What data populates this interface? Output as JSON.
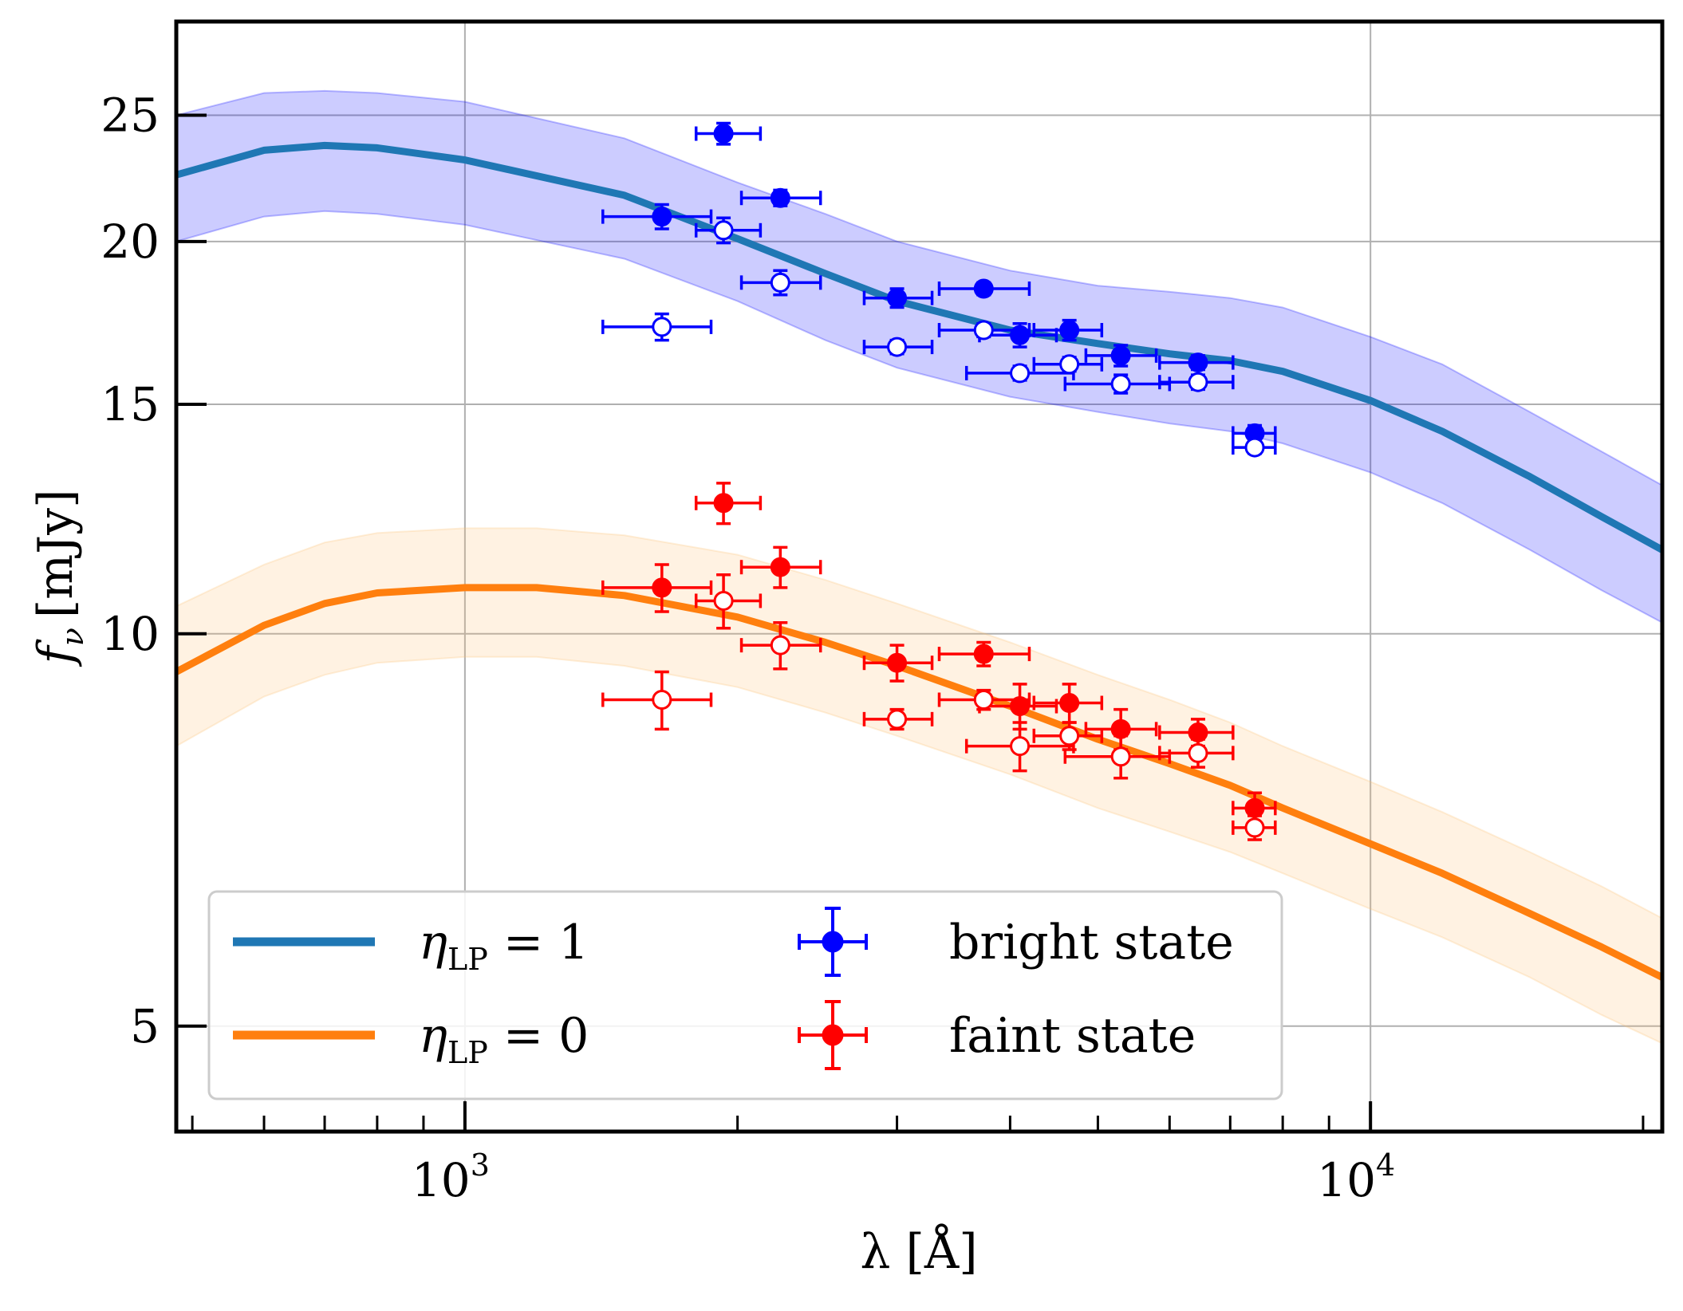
{
  "chart_data": {
    "type": "scatter",
    "x_scale": "log",
    "y_scale": "log",
    "xlim": [
      480,
      21000
    ],
    "ylim": [
      4.15,
      29.5
    ],
    "xlabel": "λ [Å]",
    "ylabel_main": "f",
    "ylabel_sub": "ν",
    "ylabel_unit": "[mJy]",
    "x_ticks": [
      {
        "value": 1000,
        "base": "10",
        "exp": "3"
      },
      {
        "value": 10000,
        "base": "10",
        "exp": "4"
      }
    ],
    "y_ticks": [
      {
        "value": 5,
        "label": "5"
      },
      {
        "value": 10,
        "label": "10"
      },
      {
        "value": 15,
        "label": "15"
      },
      {
        "value": 20,
        "label": "20"
      },
      {
        "value": 25,
        "label": "25"
      }
    ],
    "grid": true,
    "models": [
      {
        "name_main": "η",
        "name_sub": "LP",
        "name_rest": " = 1",
        "color": "#1f77b4",
        "band_color": "#0000ff",
        "x": [
          480,
          600,
          700,
          800,
          1000,
          1500,
          2000,
          2500,
          3000,
          4000,
          5000,
          6000,
          7000,
          8000,
          10000,
          12000,
          15000,
          18000,
          21000
        ],
        "y": [
          22.5,
          23.5,
          23.7,
          23.6,
          23.1,
          21.7,
          20.1,
          18.9,
          18.0,
          17.1,
          16.7,
          16.4,
          16.2,
          15.9,
          15.1,
          14.3,
          13.2,
          12.3,
          11.6
        ],
        "lower": [
          20.0,
          20.9,
          21.1,
          21.0,
          20.6,
          19.4,
          18.0,
          16.8,
          16.0,
          15.2,
          14.8,
          14.5,
          14.3,
          14.0,
          13.3,
          12.6,
          11.6,
          10.8,
          10.2
        ],
        "upper": [
          25.0,
          26.0,
          26.1,
          26.0,
          25.6,
          24.0,
          22.2,
          21.0,
          20.0,
          19.0,
          18.5,
          18.3,
          18.1,
          17.8,
          16.9,
          16.1,
          14.8,
          13.8,
          13.0
        ]
      },
      {
        "name_main": "η",
        "name_sub": "LP",
        "name_rest": " = 0",
        "color": "#ff7f0e",
        "band_color": "#fdbf6f",
        "x": [
          480,
          600,
          700,
          800,
          1000,
          1200,
          1500,
          2000,
          2500,
          3000,
          4000,
          5000,
          6000,
          7000,
          8000,
          10000,
          12000,
          15000,
          18000,
          21000
        ],
        "y": [
          9.35,
          10.15,
          10.55,
          10.75,
          10.85,
          10.85,
          10.7,
          10.3,
          9.85,
          9.45,
          8.8,
          8.3,
          7.95,
          7.65,
          7.35,
          6.9,
          6.55,
          6.1,
          5.75,
          5.45
        ],
        "lower": [
          8.2,
          8.95,
          9.3,
          9.5,
          9.6,
          9.6,
          9.45,
          9.1,
          8.7,
          8.35,
          7.8,
          7.35,
          7.05,
          6.8,
          6.55,
          6.15,
          5.85,
          5.45,
          5.1,
          4.85
        ],
        "upper": [
          10.5,
          11.3,
          11.75,
          11.95,
          12.05,
          12.05,
          11.9,
          11.5,
          11.0,
          10.55,
          9.85,
          9.3,
          8.9,
          8.55,
          8.2,
          7.7,
          7.3,
          6.8,
          6.4,
          6.05
        ]
      }
    ],
    "series": [
      {
        "name": "bright state",
        "color": "#0000ff",
        "points": [
          {
            "x": 1650,
            "xerr_lo": 1420,
            "xerr_hi": 1870,
            "y": 20.9,
            "yerr": 0.45,
            "filled": true
          },
          {
            "x": 1930,
            "xerr_lo": 1800,
            "xerr_hi": 2120,
            "y": 24.2,
            "yerr": 0.45,
            "filled": true
          },
          {
            "x": 2230,
            "xerr_lo": 2020,
            "xerr_hi": 2470,
            "y": 21.6,
            "yerr": 0.3,
            "filled": true
          },
          {
            "x": 3000,
            "xerr_lo": 2760,
            "xerr_hi": 3280,
            "y": 18.1,
            "yerr": 0.3,
            "filled": true
          },
          {
            "x": 3740,
            "xerr_lo": 3340,
            "xerr_hi": 4200,
            "y": 18.4,
            "yerr": 0.2,
            "filled": true
          },
          {
            "x": 4100,
            "xerr_lo": 3700,
            "xerr_hi": 4500,
            "y": 16.95,
            "yerr": 0.35,
            "filled": true
          },
          {
            "x": 4650,
            "xerr_lo": 4250,
            "xerr_hi": 5050,
            "y": 17.1,
            "yerr": 0.3,
            "filled": true
          },
          {
            "x": 5300,
            "xerr_lo": 4850,
            "xerr_hi": 5800,
            "y": 16.35,
            "yerr": 0.3,
            "filled": true
          },
          {
            "x": 6450,
            "xerr_lo": 5850,
            "xerr_hi": 7050,
            "y": 16.15,
            "yerr": 0.2,
            "filled": true
          },
          {
            "x": 7450,
            "xerr_lo": 7050,
            "xerr_hi": 7850,
            "y": 14.25,
            "yerr": 0.2,
            "filled": true
          },
          {
            "x": 1650,
            "xerr_lo": 1420,
            "xerr_hi": 1870,
            "y": 17.2,
            "yerr": 0.4,
            "filled": false
          },
          {
            "x": 1930,
            "xerr_lo": 1800,
            "xerr_hi": 2120,
            "y": 20.4,
            "yerr": 0.45,
            "filled": false
          },
          {
            "x": 2230,
            "xerr_lo": 2020,
            "xerr_hi": 2470,
            "y": 18.6,
            "yerr": 0.4,
            "filled": false
          },
          {
            "x": 3000,
            "xerr_lo": 2760,
            "xerr_hi": 3280,
            "y": 16.6,
            "yerr": 0.2,
            "filled": false
          },
          {
            "x": 3740,
            "xerr_lo": 3340,
            "xerr_hi": 4200,
            "y": 17.1,
            "yerr": 0.2,
            "filled": false
          },
          {
            "x": 4100,
            "xerr_lo": 3580,
            "xerr_hi": 4700,
            "y": 15.85,
            "yerr": 0.2,
            "filled": false
          },
          {
            "x": 4650,
            "xerr_lo": 4250,
            "xerr_hi": 5050,
            "y": 16.1,
            "yerr": 0.2,
            "filled": false
          },
          {
            "x": 5300,
            "xerr_lo": 4600,
            "xerr_hi": 6000,
            "y": 15.55,
            "yerr": 0.25,
            "filled": false
          },
          {
            "x": 6450,
            "xerr_lo": 5850,
            "xerr_hi": 7050,
            "y": 15.6,
            "yerr": 0.2,
            "filled": false
          },
          {
            "x": 7450,
            "xerr_lo": 7050,
            "xerr_hi": 7850,
            "y": 13.9,
            "yerr": 0.15,
            "filled": false
          }
        ]
      },
      {
        "name": "faint state",
        "color": "#ff0000",
        "points": [
          {
            "x": 1650,
            "xerr_lo": 1420,
            "xerr_hi": 1870,
            "y": 10.85,
            "yerr": 0.45,
            "filled": true
          },
          {
            "x": 1930,
            "xerr_lo": 1800,
            "xerr_hi": 2120,
            "y": 12.6,
            "yerr": 0.45,
            "filled": true
          },
          {
            "x": 2230,
            "xerr_lo": 2020,
            "xerr_hi": 2470,
            "y": 11.25,
            "yerr": 0.4,
            "filled": true
          },
          {
            "x": 3000,
            "xerr_lo": 2760,
            "xerr_hi": 3280,
            "y": 9.5,
            "yerr": 0.3,
            "filled": true
          },
          {
            "x": 3740,
            "xerr_lo": 3340,
            "xerr_hi": 4200,
            "y": 9.65,
            "yerr": 0.2,
            "filled": true
          },
          {
            "x": 4100,
            "xerr_lo": 3700,
            "xerr_hi": 4500,
            "y": 8.8,
            "yerr": 0.35,
            "filled": true
          },
          {
            "x": 4650,
            "xerr_lo": 4250,
            "xerr_hi": 5050,
            "y": 8.85,
            "yerr": 0.3,
            "filled": true
          },
          {
            "x": 5300,
            "xerr_lo": 4850,
            "xerr_hi": 5800,
            "y": 8.45,
            "yerr": 0.3,
            "filled": true
          },
          {
            "x": 6450,
            "xerr_lo": 5850,
            "xerr_hi": 7050,
            "y": 8.4,
            "yerr": 0.2,
            "filled": true
          },
          {
            "x": 7450,
            "xerr_lo": 7050,
            "xerr_hi": 7850,
            "y": 7.35,
            "yerr": 0.2,
            "filled": true
          },
          {
            "x": 1650,
            "xerr_lo": 1420,
            "xerr_hi": 1870,
            "y": 8.9,
            "yerr": 0.45,
            "filled": false
          },
          {
            "x": 1930,
            "xerr_lo": 1800,
            "xerr_hi": 2120,
            "y": 10.6,
            "yerr": 0.5,
            "filled": false
          },
          {
            "x": 2230,
            "xerr_lo": 2020,
            "xerr_hi": 2470,
            "y": 9.8,
            "yerr": 0.4,
            "filled": false
          },
          {
            "x": 3000,
            "xerr_lo": 2760,
            "xerr_hi": 3280,
            "y": 8.6,
            "yerr": 0.15,
            "filled": false
          },
          {
            "x": 3740,
            "xerr_lo": 3340,
            "xerr_hi": 4200,
            "y": 8.9,
            "yerr": 0.15,
            "filled": false
          },
          {
            "x": 4100,
            "xerr_lo": 3580,
            "xerr_hi": 4700,
            "y": 8.2,
            "yerr": 0.35,
            "filled": false
          },
          {
            "x": 4650,
            "xerr_lo": 4250,
            "xerr_hi": 5050,
            "y": 8.35,
            "yerr": 0.2,
            "filled": false
          },
          {
            "x": 5300,
            "xerr_lo": 4600,
            "xerr_hi": 6000,
            "y": 8.05,
            "yerr": 0.3,
            "filled": false
          },
          {
            "x": 6450,
            "xerr_lo": 5850,
            "xerr_hi": 7050,
            "y": 8.1,
            "yerr": 0.2,
            "filled": false
          },
          {
            "x": 7450,
            "xerr_lo": 7050,
            "xerr_hi": 7850,
            "y": 7.1,
            "yerr": 0.15,
            "filled": false
          }
        ]
      }
    ],
    "legend": {
      "placement": "lower-left",
      "columns": 2
    }
  }
}
